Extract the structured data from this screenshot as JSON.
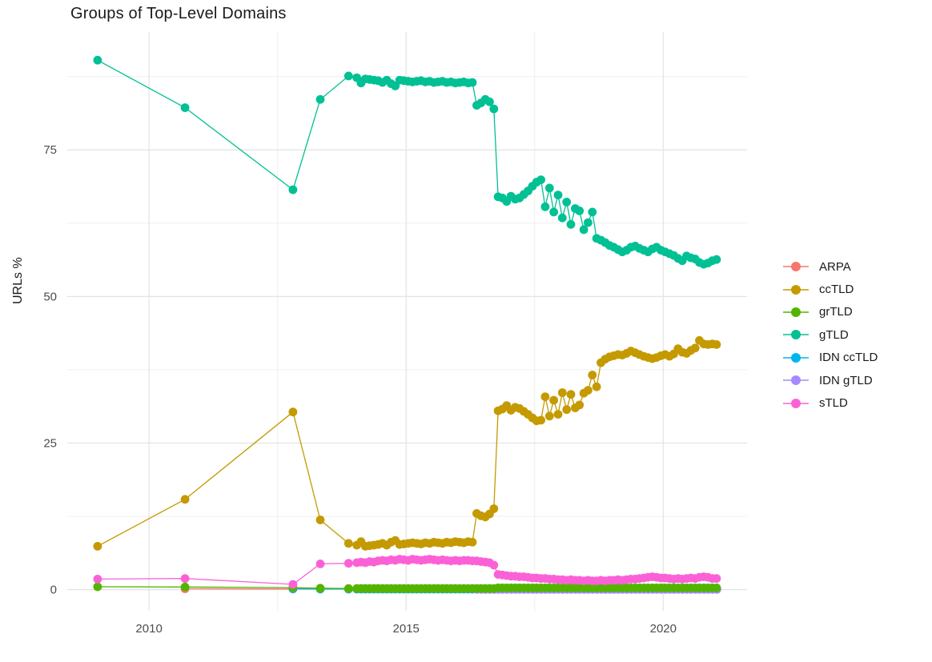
{
  "chart_data": {
    "type": "line",
    "title": "Groups of Top-Level Domains",
    "xlabel": "",
    "ylabel": "URLs %",
    "legend_position": "right",
    "grid": true,
    "xlim": [
      2008.41,
      2021.63
    ],
    "ylim": [
      -3.6,
      95.1
    ],
    "x_major_ticks": [
      2010,
      2015,
      2020
    ],
    "x_major_labels": [
      "2010",
      "2015",
      "2020"
    ],
    "x_minor_ticks": [
      2012.5,
      2017.5
    ],
    "y_major_ticks": [
      0,
      25,
      50,
      75
    ],
    "y_major_labels": [
      "0",
      "25",
      "50",
      "75"
    ],
    "y_minor_ticks": [
      12.5,
      37.5,
      62.5,
      87.5
    ],
    "colors": {
      "major_grid": "#e3e3e3",
      "minor_grid": "#efefef",
      "tick_label": "#4d4d4d",
      "title_text": "#1a1a1a"
    },
    "draw_order": [
      "ARPA",
      "IDN ccTLD",
      "IDN gTLD",
      "ccTLD",
      "gTLD",
      "grTLD",
      "sTLD"
    ],
    "series": [
      {
        "name": "ARPA",
        "color": "#F8766D",
        "segments": [
          {
            "x": [
              2010.7,
              2012.8,
              2013.33,
              2013.88
            ],
            "y": [
              0.15,
              0.12,
              0.1,
              0.1
            ]
          },
          {
            "start": 2014.04,
            "step": 0.0833,
            "const": 0.1,
            "count": 85
          }
        ]
      },
      {
        "name": "ccTLD",
        "color": "#C49A00",
        "segments": [
          {
            "x": [
              2009.0,
              2010.7,
              2012.8,
              2013.33,
              2013.88
            ],
            "y": [
              7.4,
              15.4,
              30.3,
              11.9,
              7.9
            ]
          },
          {
            "start": 2014.04,
            "step": 0.0833,
            "y": [
              7.6,
              8.2,
              7.4,
              7.5,
              7.6,
              7.7,
              7.9,
              7.6,
              8.1,
              8.4,
              7.7,
              7.8,
              7.9,
              8.0,
              7.9,
              7.8,
              8.0,
              7.9,
              8.1,
              8.0,
              7.9,
              8.1,
              8.0,
              8.2,
              8.1,
              8.0,
              8.2,
              8.1,
              13.0,
              12.6,
              12.4,
              12.9,
              13.8,
              30.5,
              30.8,
              31.4,
              30.6,
              31.1,
              30.9,
              30.4,
              29.9,
              29.3,
              28.8,
              28.9,
              32.9,
              29.6,
              32.3,
              29.9,
              33.6,
              30.7,
              33.3,
              31.0,
              31.5,
              33.5,
              34.0,
              36.6,
              34.6,
              38.7,
              39.3,
              39.7,
              39.9,
              40.1,
              40.0,
              40.3,
              40.7,
              40.4,
              40.1,
              39.8,
              39.6,
              39.4,
              39.6,
              39.9,
              40.1,
              39.8,
              40.2,
              41.1,
              40.5,
              40.3,
              40.8,
              41.2,
              42.5,
              41.9,
              41.8,
              41.9,
              41.8
            ]
          }
        ]
      },
      {
        "name": "grTLD",
        "color": "#53B400",
        "segments": [
          {
            "x": [
              2009.0,
              2010.7,
              2012.8,
              2013.33,
              2013.88
            ],
            "y": [
              0.5,
              0.45,
              0.35,
              0.25,
              0.2
            ]
          },
          {
            "start": 2014.04,
            "step": 0.0833,
            "const": 0.2,
            "count": 33
          },
          {
            "start": 2016.79,
            "step": 0.0833,
            "const": 0.3,
            "count": 52
          }
        ]
      },
      {
        "name": "gTLD",
        "color": "#00C094",
        "segments": [
          {
            "x": [
              2009.0,
              2010.7,
              2012.8,
              2013.33,
              2013.88
            ],
            "y": [
              90.3,
              82.2,
              68.2,
              83.6,
              87.6
            ]
          },
          {
            "start": 2014.04,
            "step": 0.0833,
            "y": [
              87.3,
              86.4,
              87.1,
              87.0,
              86.9,
              86.8,
              86.5,
              86.9,
              86.3,
              85.9,
              86.9,
              86.8,
              86.7,
              86.6,
              86.7,
              86.8,
              86.6,
              86.7,
              86.5,
              86.6,
              86.7,
              86.5,
              86.6,
              86.4,
              86.5,
              86.6,
              86.4,
              86.5,
              82.6,
              83.0,
              83.6,
              83.2,
              82.0,
              67.0,
              66.8,
              66.2,
              67.1,
              66.6,
              66.8,
              67.4,
              68.0,
              68.8,
              69.5,
              69.9,
              65.3,
              68.5,
              64.4,
              67.3,
              63.4,
              66.1,
              62.3,
              65.0,
              64.6,
              61.4,
              62.6,
              64.4,
              59.9,
              59.6,
              59.2,
              58.7,
              58.4,
              58.0,
              57.6,
              57.9,
              58.4,
              58.6,
              58.2,
              57.9,
              57.6,
              58.1,
              58.4,
              57.9,
              57.6,
              57.3,
              57.0,
              56.5,
              56.1,
              56.9,
              56.6,
              56.4,
              55.8,
              55.5,
              55.7,
              56.1,
              56.3
            ]
          }
        ]
      },
      {
        "name": "IDN ccTLD",
        "color": "#00B6EB",
        "segments": [
          {
            "x": [
              2012.8,
              2013.33,
              2013.88
            ],
            "y": [
              0.15,
              0.12,
              0.1
            ]
          },
          {
            "start": 2014.04,
            "step": 0.0833,
            "const": 0.1,
            "count": 85
          }
        ]
      },
      {
        "name": "IDN gTLD",
        "color": "#A58AFF",
        "segments": [
          {
            "start": 2016.38,
            "step": 0.0833,
            "const": 0.05,
            "count": 57
          }
        ]
      },
      {
        "name": "sTLD",
        "color": "#FB61D7",
        "segments": [
          {
            "x": [
              2009.0,
              2010.7,
              2012.8,
              2013.33,
              2013.88
            ],
            "y": [
              1.8,
              1.9,
              0.9,
              4.4,
              4.5
            ]
          },
          {
            "start": 2014.04,
            "step": 0.0833,
            "y": [
              4.6,
              4.7,
              4.6,
              4.8,
              4.7,
              4.9,
              5.0,
              4.9,
              5.1,
              5.0,
              5.2,
              5.1,
              5.0,
              5.2,
              5.1,
              5.0,
              5.1,
              5.2,
              5.1,
              5.0,
              5.1,
              5.0,
              4.9,
              5.0,
              4.9,
              5.0,
              5.0,
              4.9,
              4.9,
              4.8,
              4.7,
              4.6,
              4.2,
              2.6,
              2.5,
              2.4,
              2.3,
              2.3,
              2.2,
              2.2,
              2.1,
              2.0,
              2.0,
              1.9,
              1.9,
              1.8,
              1.8,
              1.7,
              1.7,
              1.6,
              1.7,
              1.6,
              1.6,
              1.5,
              1.6,
              1.5,
              1.5,
              1.6,
              1.5,
              1.6,
              1.6,
              1.7,
              1.6,
              1.7,
              1.8,
              1.8,
              1.9,
              2.0,
              2.1,
              2.2,
              2.1,
              2.0,
              2.0,
              1.9,
              1.8,
              1.9,
              1.8,
              1.9,
              2.0,
              1.9,
              2.1,
              2.2,
              2.1,
              1.9,
              1.9
            ]
          }
        ]
      }
    ]
  }
}
